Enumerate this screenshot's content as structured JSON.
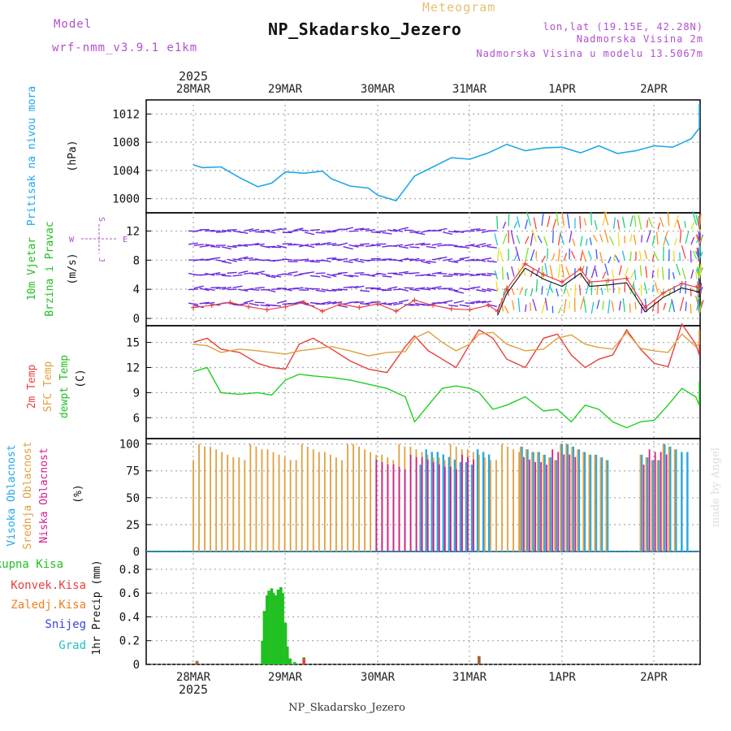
{
  "header": {
    "model_label": "Model",
    "model_name": "wrf-nmm_v3.9.1  e1km",
    "meteogram_label": "Meteogram",
    "station": "NP_Skadarsko_Jezero",
    "lonlat": "lon,lat (19.15E, 42.28N)",
    "elevation": "Nadmorska Visina 2m",
    "model_elevation": "Nadmorska Visina u modelu 13.5067m",
    "footer_station": "NP_Skadarsko_Jezero",
    "watermark": "made by Angel"
  },
  "time_axis": {
    "labels": [
      "28MAR",
      "29MAR",
      "30MAR",
      "31MAR",
      "1APR",
      "2APR"
    ],
    "year": "2025"
  },
  "colors": {
    "pressure": "#20a8e8",
    "temp2m": "#e84040",
    "sfc_temp": "#e0a040",
    "dewpt": "#20d020",
    "high_cloud": "#20a8e8",
    "mid_cloud": "#e0a040",
    "low_cloud": "#d02090",
    "total_precip": "#20c020",
    "conv_precip": "#e84040",
    "frozen_precip": "#f08020",
    "snow": "#4040e0",
    "graupel": "#20c0c0",
    "wind_label": "#20c020",
    "wind_arrows": "#6a2be0",
    "label_purple": "#b050d0",
    "gold": "#e8c070"
  },
  "chart_data": [
    {
      "type": "line",
      "panel": "pressure",
      "title": "Pritisak na nivou mora",
      "ylabel": "(hPa)",
      "ylim": [
        998,
        1014
      ],
      "yticks": [
        1000,
        1004,
        1008,
        1012
      ],
      "x_days": [
        0,
        0.1,
        0.3,
        0.5,
        0.7,
        0.85,
        1.0,
        1.2,
        1.4,
        1.5,
        1.7,
        1.9,
        2.0,
        2.2,
        2.4,
        2.6,
        2.8,
        3.0,
        3.2,
        3.4,
        3.6,
        3.8,
        4.0,
        4.2,
        4.4,
        4.6,
        4.8,
        5.0,
        5.2,
        5.4,
        5.6,
        5.8,
        6.0
      ],
      "values": [
        1004.8,
        1004.4,
        1004.5,
        1003.0,
        1001.7,
        1002.2,
        1003.8,
        1003.6,
        1003.9,
        1002.8,
        1001.8,
        1001.5,
        1000.5,
        999.7,
        1003.2,
        1004.5,
        1005.8,
        1005.6,
        1006.5,
        1007.7,
        1006.8,
        1007.2,
        1007.3,
        1006.5,
        1007.5,
        1006.4,
        1006.8,
        1007.5,
        1007.3,
        1008.5,
        1010.0,
        1012.0,
        1013.4
      ],
      "grid": true
    },
    {
      "type": "line",
      "panel": "wind",
      "title": "10m Vjetar",
      "subtitle": "Brzina i Pravac",
      "ylabel": "(m/s)",
      "compass": [
        "S",
        "E",
        "J",
        "W"
      ],
      "ylim": [
        -1,
        14.5
      ],
      "yticks": [
        0,
        4,
        8,
        12
      ],
      "barb_levels": [
        12,
        10,
        8,
        6,
        4,
        2
      ],
      "x_days": [
        0,
        0.2,
        0.4,
        0.6,
        0.8,
        1.0,
        1.2,
        1.4,
        1.6,
        1.8,
        2.0,
        2.2,
        2.4,
        2.6,
        2.8,
        3.0,
        3.2,
        3.3,
        3.4,
        3.6,
        3.8,
        4.0,
        4.2,
        4.3,
        4.5,
        4.7,
        4.9,
        5.1,
        5.3,
        5.5,
        5.7,
        5.9,
        6.0
      ],
      "speed": [
        1.5,
        1.8,
        2.2,
        1.6,
        1.2,
        1.6,
        2.2,
        1.0,
        2.0,
        1.5,
        2.0,
        1.0,
        2.5,
        1.8,
        1.3,
        1.2,
        1.8,
        1.0,
        4.0,
        7.5,
        6.0,
        5.0,
        6.8,
        5.0,
        5.2,
        5.5,
        1.5,
        3.5,
        4.8,
        4.2,
        4.6,
        3.5,
        3.7
      ],
      "grid": true
    },
    {
      "type": "line",
      "panel": "temperature",
      "series": [
        {
          "name": "2m Temp",
          "values": [
            15.0,
            15.5,
            14.2,
            13.8,
            12.5,
            12.0,
            11.8,
            14.8,
            15.5,
            14.2,
            12.8,
            11.8,
            11.4,
            14.5,
            15.8,
            14.0,
            13.0,
            12.0,
            14.8,
            16.5,
            15.5,
            13.0,
            12.0,
            15.5,
            16.0,
            13.5,
            12.0,
            13.0,
            13.5,
            16.5,
            14.2,
            12.5,
            12.1,
            17.2,
            14.8,
            13.5,
            14.0,
            16.5
          ]
        },
        {
          "name": "SFC Temp",
          "values": [
            14.8,
            14.6,
            13.8,
            14.2,
            14.0,
            13.8,
            13.6,
            14.0,
            14.2,
            14.5,
            14.0,
            13.4,
            13.8,
            13.9,
            15.5,
            16.3,
            15.0,
            14.0,
            14.8,
            16.0,
            16.2,
            14.8,
            14.0,
            14.2,
            15.5,
            15.9,
            14.8,
            14.4,
            14.2,
            16.2,
            14.3,
            14.0,
            13.8,
            16.0,
            14.5,
            14.8,
            15.5,
            16.5
          ]
        },
        {
          "name": "dewpt Temp",
          "values": [
            11.5,
            12.0,
            9.0,
            8.8,
            9.0,
            8.7,
            10.5,
            11.2,
            11.0,
            10.8,
            10.5,
            10.0,
            9.5,
            8.5,
            5.5,
            7.5,
            9.5,
            9.8,
            9.5,
            9.0,
            7.0,
            7.5,
            8.5,
            6.8,
            7.0,
            5.5,
            7.5,
            7.0,
            5.5,
            4.8,
            5.5,
            5.7,
            7.5,
            9.5,
            8.5,
            7.5,
            7.5,
            10.3
          ]
        }
      ],
      "x_days": [
        0,
        0.15,
        0.3,
        0.5,
        0.7,
        0.85,
        1.0,
        1.15,
        1.3,
        1.5,
        1.7,
        1.9,
        2.1,
        2.3,
        2.4,
        2.55,
        2.7,
        2.85,
        3.0,
        3.1,
        3.25,
        3.4,
        3.6,
        3.8,
        3.95,
        4.1,
        4.25,
        4.4,
        4.55,
        4.7,
        4.85,
        5.0,
        5.15,
        5.3,
        5.45,
        5.6,
        5.8,
        6.0
      ],
      "ylabel": "(C)",
      "ylim": [
        3.5,
        17.0
      ],
      "yticks": [
        6,
        9,
        12,
        15
      ],
      "grid": true
    },
    {
      "type": "bar",
      "panel": "clouds",
      "ylabel": "(%)",
      "ylim": [
        0,
        105
      ],
      "yticks": [
        0,
        25,
        50,
        75,
        100
      ],
      "series": [
        {
          "name": "Visoka Oblacnost",
          "segments": [
            {
              "start_day": 2.45,
              "end_day": 3.2,
              "value": 95
            },
            {
              "start_day": 3.55,
              "end_day": 4.5,
              "value": 100
            },
            {
              "start_day": 4.85,
              "end_day": 5.35,
              "value": 100
            }
          ]
        },
        {
          "name": "Srednja Oblacnost",
          "segments": [
            {
              "start_day": 0.0,
              "end_day": 3.55,
              "value": 100
            },
            {
              "start_day": 3.55,
              "end_day": 4.5,
              "value": 100
            },
            {
              "start_day": 4.85,
              "end_day": 5.25,
              "value": 100
            }
          ]
        },
        {
          "name": "Niska Oblacnost",
          "segments": [
            {
              "start_day": 2.0,
              "end_day": 3.1,
              "value": 90
            },
            {
              "start_day": 3.6,
              "end_day": 4.2,
              "value": 95
            },
            {
              "start_day": 4.9,
              "end_day": 5.2,
              "value": 95
            }
          ]
        }
      ],
      "grid": true
    },
    {
      "type": "bar",
      "panel": "precipitation",
      "ylabel": "1hr Precip (mm)",
      "ylim": [
        0,
        0.95
      ],
      "yticks": [
        0,
        0.2,
        0.4,
        0.6,
        0.8
      ],
      "series": [
        {
          "name": "Ukupna Kisa",
          "x_days": [
            0.04,
            0.75,
            0.77,
            0.8,
            0.82,
            0.85,
            0.87,
            0.9,
            0.92,
            0.95,
            0.97,
            1.0,
            1.02,
            1.05,
            1.1,
            1.2
          ],
          "values": [
            0.03,
            0.2,
            0.45,
            0.58,
            0.62,
            0.64,
            0.6,
            0.58,
            0.63,
            0.65,
            0.6,
            0.35,
            0.15,
            0.05,
            0.02,
            0.06
          ]
        },
        {
          "name": "Konvek.Kisa",
          "x_days": [
            0.04,
            1.2,
            3.1
          ],
          "values": [
            0.02,
            0.05,
            0.07
          ]
        },
        {
          "name": "Zaledj.Kisa",
          "values": []
        },
        {
          "name": "Snijeg",
          "values": []
        },
        {
          "name": "Grad",
          "values": []
        }
      ],
      "grid": true
    }
  ]
}
